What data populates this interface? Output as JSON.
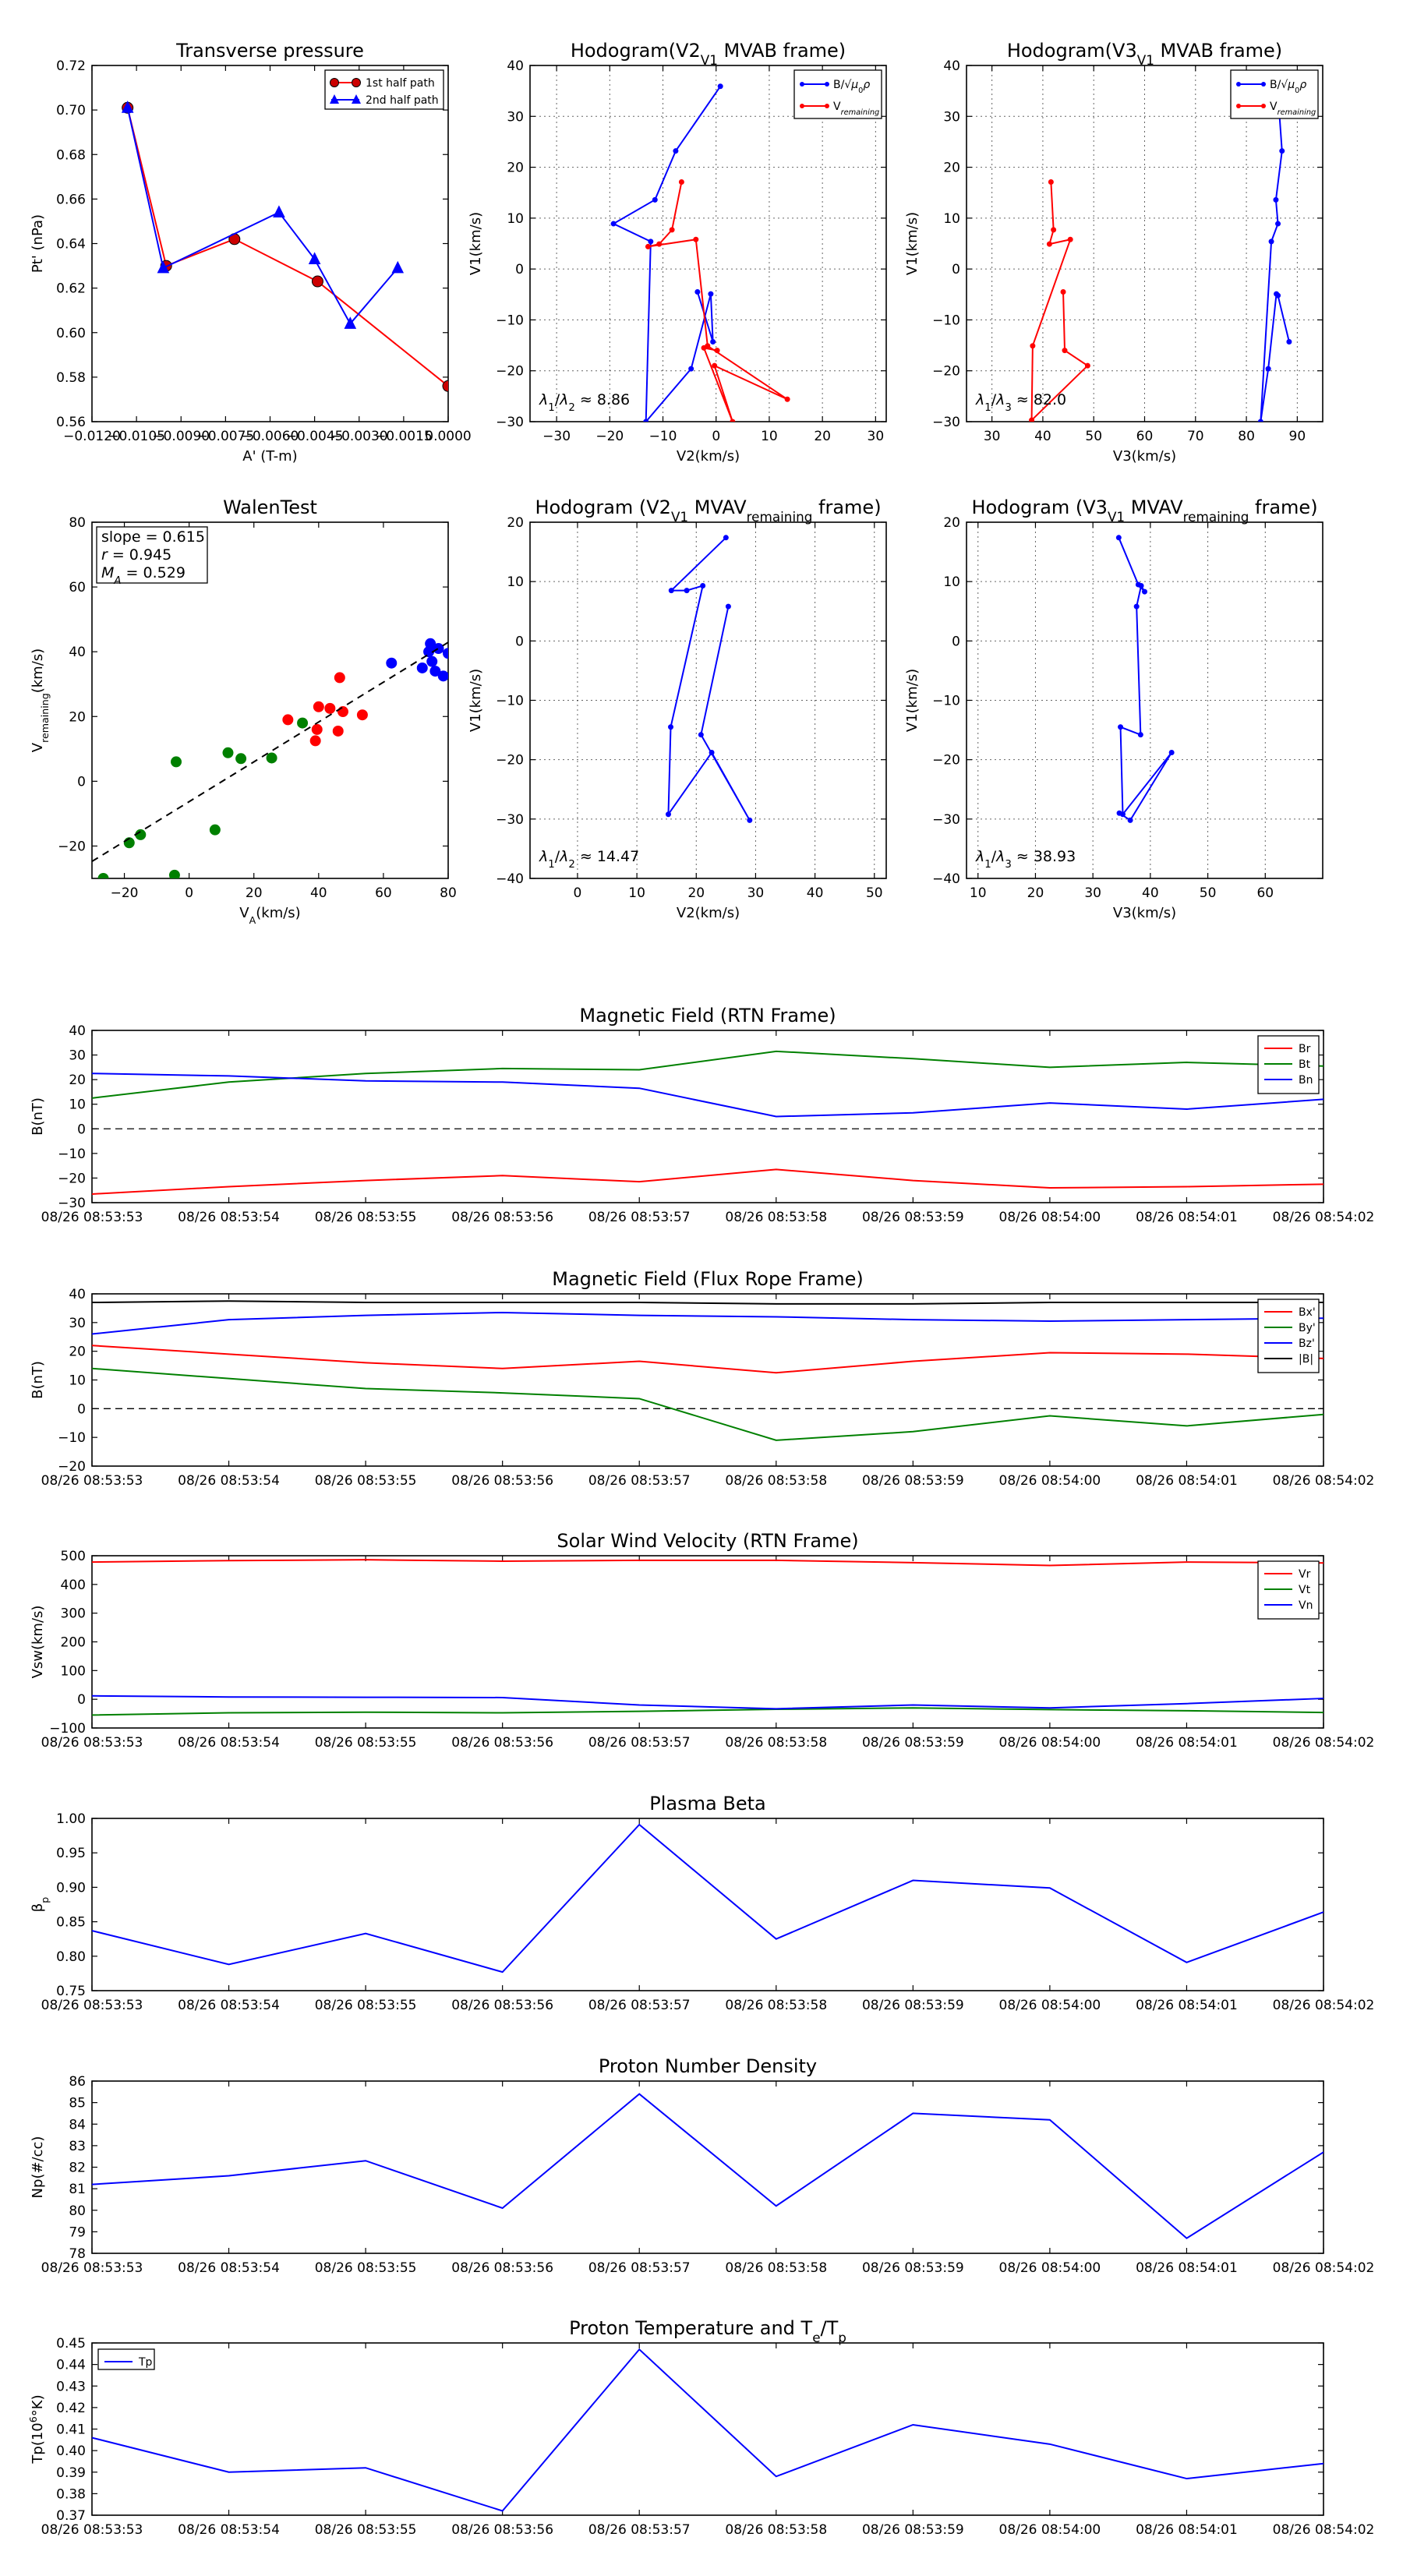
{
  "colors": {
    "red": "#ff0000",
    "blue": "#0000ff",
    "green": "#008000",
    "black": "#000000",
    "dred": "#cc0000"
  },
  "chart_data": [
    {
      "id": "tp",
      "type": "line",
      "title": "Transverse pressure",
      "xlabel": "A' (T-m)",
      "ylabel": "Pt' (nPa)",
      "xlim": [
        -0.012,
        0.0
      ],
      "ylim": [
        0.56,
        0.72
      ],
      "xticks": [
        -0.012,
        -0.0105,
        -0.009,
        -0.0075,
        -0.006,
        -0.0045,
        -0.003,
        -0.0015,
        0.0
      ],
      "xtick_labels": [
        "−0.0120",
        "−0.0105",
        "−0.0090",
        "−0.0075",
        "−0.0060",
        "−0.0045",
        "−0.0030",
        "−0.0015",
        "0.0000"
      ],
      "yticks": [
        0.56,
        0.58,
        0.6,
        0.62,
        0.64,
        0.66,
        0.68,
        0.7,
        0.72
      ],
      "ytick_labels": [
        "0.56",
        "0.58",
        "0.60",
        "0.62",
        "0.64",
        "0.66",
        "0.68",
        "0.70",
        "0.72"
      ],
      "legend": [
        "1st half path",
        "2nd half path"
      ],
      "legend_loc": "top-right",
      "series": [
        {
          "name": "1st half path",
          "color": "red",
          "marker": "circle",
          "x": [
            -0.0108,
            -0.0095,
            -0.0072,
            -0.0044,
            0.0
          ],
          "y": [
            0.701,
            0.63,
            0.642,
            0.623,
            0.576
          ]
        },
        {
          "name": "2nd half path",
          "color": "blue",
          "marker": "triangle",
          "x": [
            -0.0108,
            -0.0096,
            -0.0057,
            -0.0045,
            -0.0033,
            -0.0017
          ],
          "y": [
            0.701,
            0.629,
            0.654,
            0.633,
            0.604,
            0.629
          ]
        }
      ]
    },
    {
      "id": "h1",
      "type": "line",
      "title": "Hodogram(V2_V1 MVAB frame)",
      "xlabel": "V2(km/s)",
      "ylabel": "V1(km/s)",
      "xlim": [
        -35,
        32
      ],
      "ylim": [
        -30,
        40
      ],
      "xticks": [
        -30,
        -20,
        -10,
        0,
        10,
        20,
        30
      ],
      "yticks": [
        -30,
        -20,
        -10,
        0,
        10,
        20,
        30,
        40
      ],
      "grid": true,
      "annotation": "λ1/λ2 ≈ 8.86",
      "legend_loc": "top-right",
      "legend": [
        "B/√μ0ρ",
        "V_remaining"
      ],
      "series": [
        {
          "name": "B/√μ0ρ",
          "color": "blue",
          "x": [
            0.8,
            -7.6,
            -11.5,
            -19.3,
            -12.3,
            -13.2,
            -4.7,
            -1.0,
            -0.6,
            -3.5
          ],
          "y": [
            35.9,
            23.2,
            13.6,
            8.9,
            5.4,
            -30.0,
            -19.6,
            -4.9,
            -14.3,
            -4.5
          ]
        },
        {
          "name": "V_remaining",
          "color": "red",
          "x": [
            -6.5,
            -8.3,
            -10.7,
            -12.8,
            -3.8,
            -1.6,
            13.4,
            -0.3,
            3.1,
            -2.3,
            0.2
          ],
          "y": [
            17.1,
            7.7,
            4.9,
            4.4,
            5.8,
            -15.1,
            -25.6,
            -19.0,
            -30.0,
            -15.5,
            -16.0
          ]
        }
      ]
    },
    {
      "id": "h2",
      "type": "line",
      "title": "Hodogram(V3_V1 MVAB frame)",
      "xlabel": "V3(km/s)",
      "ylabel": "V1(km/s)",
      "xlim": [
        25,
        95
      ],
      "ylim": [
        -30,
        40
      ],
      "xticks": [
        30,
        40,
        50,
        60,
        70,
        80,
        90
      ],
      "yticks": [
        -30,
        -20,
        -10,
        0,
        10,
        20,
        30,
        40
      ],
      "grid": true,
      "annotation": "λ1/λ3 ≈ 82.0",
      "legend_loc": "top-right",
      "legend": [
        "B/√μ0ρ",
        "V_remaining"
      ],
      "series": [
        {
          "name": "B/√μ0ρ",
          "color": "blue",
          "x": [
            86.1,
            87.0,
            85.8,
            86.2,
            84.9,
            82.8,
            84.3,
            85.9,
            86.2,
            88.4
          ],
          "y": [
            35.9,
            23.2,
            13.6,
            8.9,
            5.4,
            -30.0,
            -19.6,
            -4.9,
            -5.2,
            -14.3
          ]
        },
        {
          "name": "V_remaining",
          "color": "red",
          "x": [
            41.6,
            42.1,
            41.3,
            45.4,
            38.0,
            37.8,
            48.8,
            44.3,
            44.0
          ],
          "y": [
            17.1,
            7.7,
            4.9,
            5.8,
            -15.1,
            -29.7,
            -19.0,
            -16.0,
            -4.5
          ]
        }
      ]
    },
    {
      "id": "walen",
      "type": "scatter",
      "title": "WalenTest",
      "xlabel": "V_A(km/s)",
      "ylabel": "V_remaining(km/s)",
      "xlim": [
        -30,
        80
      ],
      "ylim": [
        -30,
        80
      ],
      "xticks": [
        -20,
        0,
        20,
        40,
        60,
        80
      ],
      "yticks": [
        -20,
        0,
        20,
        40,
        60,
        80
      ],
      "stats": [
        "slope = 0.615",
        "r = 0.945",
        "M_A = 0.529"
      ],
      "fit_line": {
        "slope": 0.615,
        "intercept": -6.3
      },
      "series": [
        {
          "name": "green",
          "color": "green",
          "x": [
            -26.5,
            -18.5,
            -15.0,
            -4.5,
            -4.0,
            8.0,
            12.0,
            16.0,
            25.5,
            35.0
          ],
          "y": [
            -30.0,
            -19.0,
            -16.5,
            -29.0,
            6.0,
            -15.0,
            8.8,
            7.0,
            7.2,
            18.0
          ]
        },
        {
          "name": "red",
          "color": "red",
          "x": [
            30.5,
            39.0,
            39.5,
            40.0,
            43.5,
            46.0,
            46.5,
            47.5,
            53.5
          ],
          "y": [
            19.0,
            12.5,
            16.0,
            23.0,
            22.5,
            15.5,
            32.0,
            21.5,
            20.5
          ]
        },
        {
          "name": "blue",
          "color": "blue",
          "x": [
            62.5,
            72.0,
            74.0,
            74.5,
            75.0,
            76.0,
            77.0,
            78.5,
            80.0
          ],
          "y": [
            36.5,
            35.0,
            40.0,
            42.5,
            37.0,
            34.0,
            41.0,
            32.5,
            39.5
          ]
        }
      ]
    },
    {
      "id": "h3",
      "type": "line",
      "title": "Hodogram (V2_V1 MVAV_remaining frame)",
      "xlabel": "V2(km/s)",
      "ylabel": "V1(km/s)",
      "xlim": [
        -8,
        52
      ],
      "ylim": [
        -40,
        20
      ],
      "xticks": [
        0,
        10,
        20,
        30,
        40,
        50
      ],
      "yticks": [
        -40,
        -30,
        -20,
        -10,
        0,
        10,
        20
      ],
      "grid": true,
      "annotation": "λ1/λ2 ≈ 14.47",
      "series": [
        {
          "name": "V",
          "color": "blue",
          "x": [
            25.0,
            15.8,
            18.4,
            21.1,
            15.7,
            15.3,
            22.6,
            29.0,
            20.8,
            25.4
          ],
          "y": [
            17.4,
            8.5,
            8.5,
            9.3,
            -14.5,
            -29.2,
            -18.8,
            -30.2,
            -15.8,
            5.8
          ]
        }
      ]
    },
    {
      "id": "h4",
      "type": "line",
      "title": "Hodogram (V3_V1 MVAV_remaining frame)",
      "xlabel": "V3(km/s)",
      "ylabel": "V1(km/s)",
      "xlim": [
        8,
        70
      ],
      "ylim": [
        -40,
        20
      ],
      "xticks": [
        10,
        20,
        30,
        40,
        50,
        60
      ],
      "yticks": [
        -40,
        -30,
        -20,
        -10,
        0,
        10,
        20
      ],
      "grid": true,
      "annotation": "λ1/λ3 ≈ 38.93",
      "series": [
        {
          "name": "V",
          "color": "blue",
          "x": [
            34.5,
            37.9,
            39.0,
            38.4,
            37.6,
            38.3,
            34.8,
            35.2,
            43.7,
            36.5,
            34.6
          ],
          "y": [
            17.4,
            9.5,
            8.3,
            9.3,
            5.8,
            -15.8,
            -14.5,
            -29.2,
            -18.8,
            -30.2,
            -29.0
          ]
        }
      ]
    },
    {
      "id": "magrtn",
      "type": "line",
      "title": "Magnetic Field (RTN Frame)",
      "ylabel": "B(nT)",
      "ylim": [
        -30,
        40
      ],
      "yticks": [
        -30,
        -20,
        -10,
        0,
        10,
        20,
        30,
        40
      ],
      "zero_line": true,
      "legend": [
        "Br",
        "Bt",
        "Bn"
      ],
      "legend_loc": "top-right",
      "series": [
        {
          "name": "Br",
          "color": "red",
          "values": [
            -26.5,
            -23.5,
            -21.0,
            -19.0,
            -21.5,
            -16.5,
            -21.0,
            -24.0,
            -23.5,
            -22.5
          ]
        },
        {
          "name": "Bt",
          "color": "green",
          "values": [
            12.5,
            19.0,
            22.5,
            24.5,
            24.0,
            31.5,
            28.5,
            25.0,
            27.0,
            25.5
          ]
        },
        {
          "name": "Bn",
          "color": "blue",
          "values": [
            22.5,
            21.5,
            19.5,
            19.0,
            16.5,
            5.0,
            6.5,
            10.5,
            8.0,
            12.0
          ]
        }
      ]
    },
    {
      "id": "magfr",
      "type": "line",
      "title": "Magnetic Field (Flux Rope Frame)",
      "ylabel": "B(nT)",
      "ylim": [
        -20,
        40
      ],
      "yticks": [
        -20,
        -10,
        0,
        10,
        20,
        30,
        40
      ],
      "zero_line": true,
      "legend": [
        "Bx'",
        "By'",
        "Bz'",
        "|B|"
      ],
      "legend_loc": "top-right",
      "series": [
        {
          "name": "Bx'",
          "color": "red",
          "values": [
            22.0,
            19.0,
            16.0,
            14.0,
            16.5,
            12.5,
            16.5,
            19.5,
            19.0,
            17.5
          ]
        },
        {
          "name": "By'",
          "color": "green",
          "values": [
            14.0,
            10.5,
            7.0,
            5.5,
            3.5,
            -11.0,
            -8.0,
            -2.5,
            -6.0,
            -2.0
          ]
        },
        {
          "name": "Bz'",
          "color": "blue",
          "values": [
            26.0,
            31.0,
            32.5,
            33.5,
            32.5,
            32.0,
            31.0,
            30.5,
            31.0,
            31.5
          ]
        },
        {
          "name": "|B|",
          "color": "black",
          "values": [
            37.0,
            37.5,
            37.0,
            37.0,
            37.0,
            36.5,
            36.5,
            37.0,
            37.0,
            37.0
          ]
        }
      ]
    },
    {
      "id": "vsw",
      "type": "line",
      "title": "Solar Wind Velocity (RTN Frame)",
      "ylabel": "Vsw(km/s)",
      "ylim": [
        -100,
        500
      ],
      "yticks": [
        -100,
        0,
        100,
        200,
        300,
        400,
        500
      ],
      "legend": [
        "Vr",
        "Vt",
        "Vn"
      ],
      "legend_loc": "top-right",
      "series": [
        {
          "name": "Vr",
          "color": "red",
          "values": [
            478,
            483,
            486,
            481,
            484,
            484,
            476,
            466,
            478,
            475
          ]
        },
        {
          "name": "Vt",
          "color": "green",
          "values": [
            -55,
            -47,
            -45,
            -47,
            -42,
            -35,
            -30,
            -36,
            -40,
            -46
          ]
        },
        {
          "name": "Vn",
          "color": "blue",
          "values": [
            12,
            8,
            7,
            6,
            -20,
            -33,
            -20,
            -30,
            -15,
            3
          ]
        }
      ]
    },
    {
      "id": "beta",
      "type": "line",
      "title": "Plasma Beta",
      "ylabel": "β_p",
      "ylim": [
        0.75,
        1.0
      ],
      "yticks": [
        0.75,
        0.8,
        0.85,
        0.9,
        0.95,
        1.0
      ],
      "ytick_labels": [
        "0.75",
        "0.80",
        "0.85",
        "0.90",
        "0.95",
        "1.00"
      ],
      "series": [
        {
          "name": "beta",
          "color": "blue",
          "values": [
            0.837,
            0.788,
            0.833,
            0.777,
            0.991,
            0.825,
            0.91,
            0.899,
            0.791,
            0.864
          ]
        }
      ]
    },
    {
      "id": "np",
      "type": "line",
      "title": "Proton Number Density",
      "ylabel": "Np(#/cc)",
      "ylim": [
        78,
        86
      ],
      "yticks": [
        78,
        79,
        80,
        81,
        82,
        83,
        84,
        85,
        86
      ],
      "series": [
        {
          "name": "Np",
          "color": "blue",
          "values": [
            81.2,
            81.6,
            82.3,
            80.1,
            85.4,
            80.2,
            84.5,
            84.2,
            78.7,
            82.7
          ]
        }
      ]
    },
    {
      "id": "tpr",
      "type": "line",
      "title": "Proton Temperature and T_e/T_p",
      "ylabel": "Tp(10^6°K)",
      "ylim": [
        0.37,
        0.45
      ],
      "yticks": [
        0.37,
        0.38,
        0.39,
        0.4,
        0.41,
        0.42,
        0.43,
        0.44,
        0.45
      ],
      "ytick_labels": [
        "0.37",
        "0.38",
        "0.39",
        "0.40",
        "0.41",
        "0.42",
        "0.43",
        "0.44",
        "0.45"
      ],
      "legend": [
        "Tp"
      ],
      "legend_loc": "top-left",
      "series": [
        {
          "name": "Tp",
          "color": "blue",
          "values": [
            0.406,
            0.39,
            0.392,
            0.372,
            0.447,
            0.388,
            0.412,
            0.403,
            0.387,
            0.394
          ]
        }
      ]
    }
  ],
  "time_labels": [
    "08/26 08:53:53",
    "08/26 08:53:54",
    "08/26 08:53:55",
    "08/26 08:53:56",
    "08/26 08:53:57",
    "08/26 08:53:58",
    "08/26 08:53:59",
    "08/26 08:54:00",
    "08/26 08:54:01",
    "08/26 08:54:02"
  ]
}
